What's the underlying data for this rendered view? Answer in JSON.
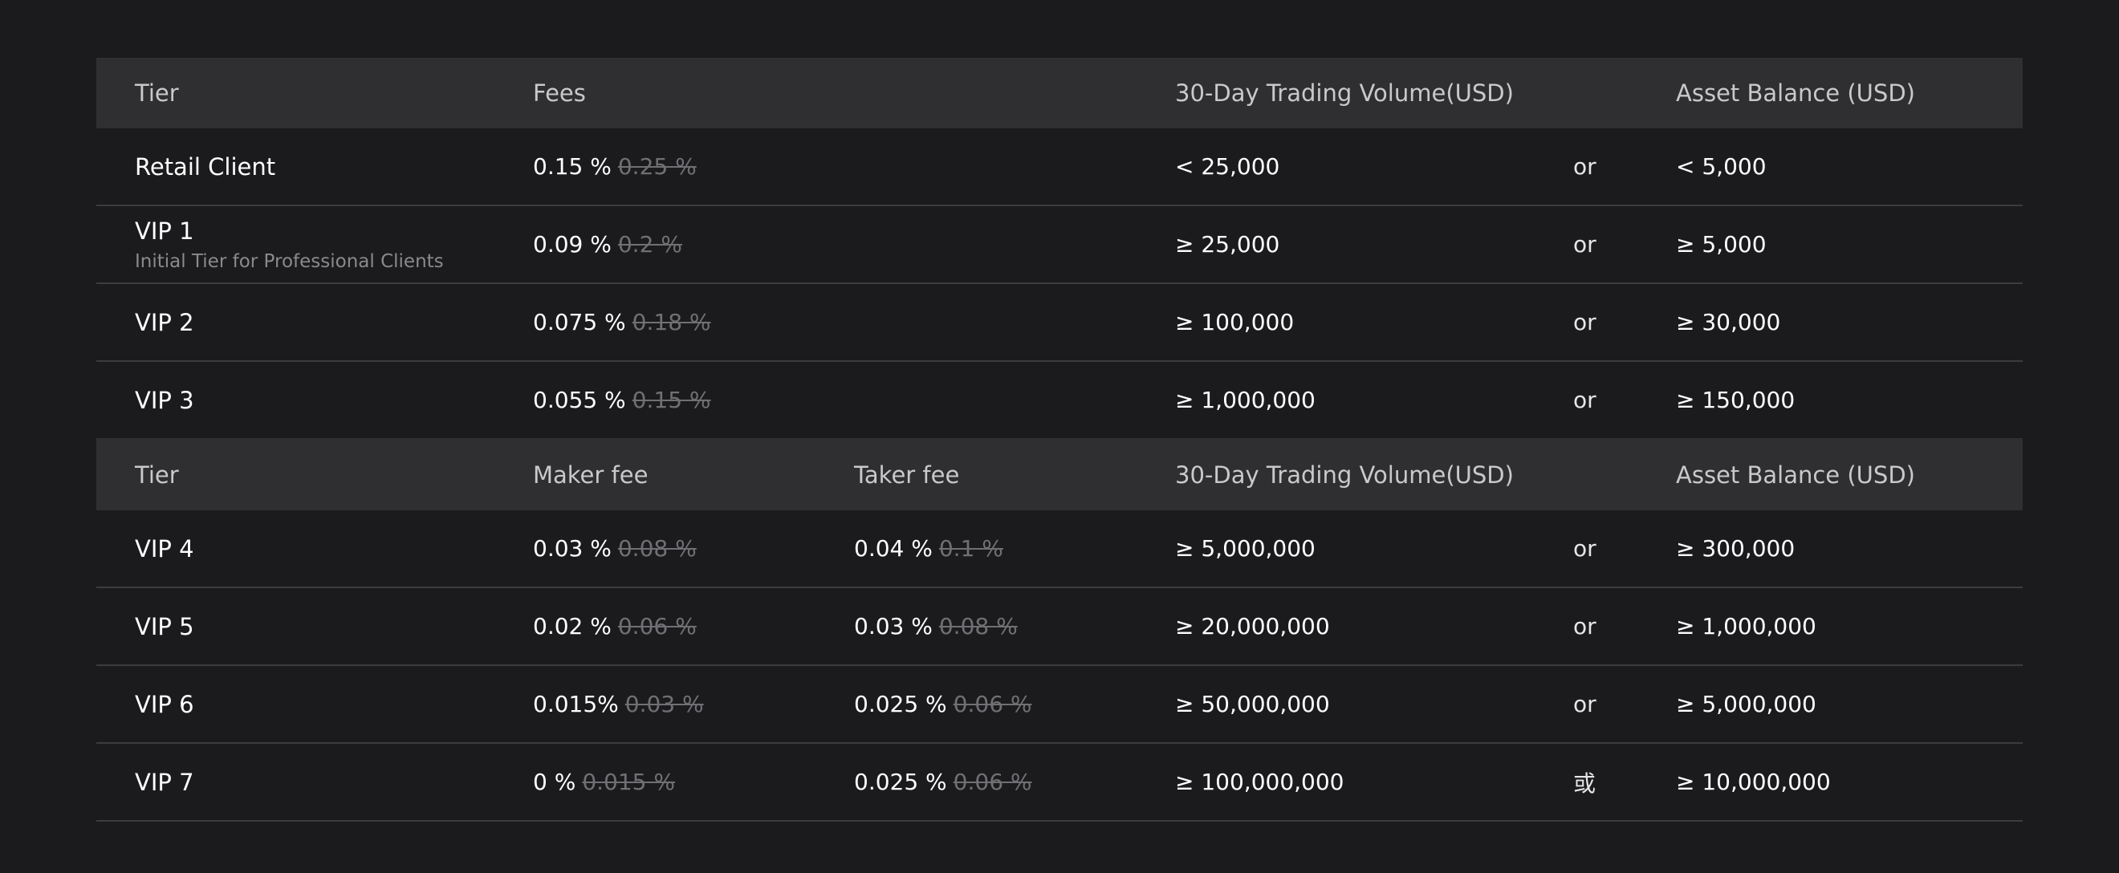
{
  "table1": {
    "headers": {
      "tier": "Tier",
      "fees": "Fees",
      "volume": "30-Day Trading Volume(USD)",
      "balance": "Asset Balance (USD)"
    },
    "rows": [
      {
        "tier": "Retail Client",
        "sub": "",
        "fee": "0.15 %",
        "fee_old": "0.25 %",
        "volume": "<  25,000",
        "or": "or",
        "balance": "< 5,000"
      },
      {
        "tier": "VIP 1",
        "sub": "Initial Tier for Professional Clients",
        "fee": "0.09 %",
        "fee_old": "0.2 %",
        "volume": "≥ 25,000",
        "or": "or",
        "balance": "≥ 5,000"
      },
      {
        "tier": "VIP 2",
        "sub": "",
        "fee": "0.075 %",
        "fee_old": "0.18 %",
        "volume": "≥ 100,000",
        "or": "or",
        "balance": "≥ 30,000"
      },
      {
        "tier": "VIP 3",
        "sub": "",
        "fee": "0.055 %",
        "fee_old": "0.15 %",
        "volume": "≥ 1,000,000",
        "or": "or",
        "balance": "≥ 150,000"
      }
    ]
  },
  "table2": {
    "headers": {
      "tier": "Tier",
      "maker": "Maker fee",
      "taker": "Taker fee",
      "volume": "30-Day Trading Volume(USD)",
      "balance": "Asset Balance (USD)"
    },
    "rows": [
      {
        "tier": "VIP 4",
        "maker": "0.03 %",
        "maker_old": "0.08 %",
        "taker": "0.04 %",
        "taker_old": "0.1 %",
        "volume": "≥ 5,000,000",
        "or": "or",
        "balance": "≥ 300,000"
      },
      {
        "tier": "VIP 5",
        "maker": "0.02 %",
        "maker_old": "0.06 %",
        "taker": "0.03 %",
        "taker_old": "0.08 %",
        "volume": "≥ 20,000,000",
        "or": "or",
        "balance": "≥ 1,000,000"
      },
      {
        "tier": "VIP 6",
        "maker": "0.015%",
        "maker_old": "0.03 %",
        "taker": "0.025 %",
        "taker_old": "0.06 %",
        "volume": "≥ 50,000,000",
        "or": "or",
        "balance": "≥ 5,000,000"
      },
      {
        "tier": "VIP 7",
        "maker": "0 %",
        "maker_old": "0.015 %",
        "taker": "0.025 %",
        "taker_old": "0.06 %",
        "volume": "≥ 100,000,000",
        "or": "或",
        "balance": "≥ 10,000,000"
      }
    ]
  }
}
